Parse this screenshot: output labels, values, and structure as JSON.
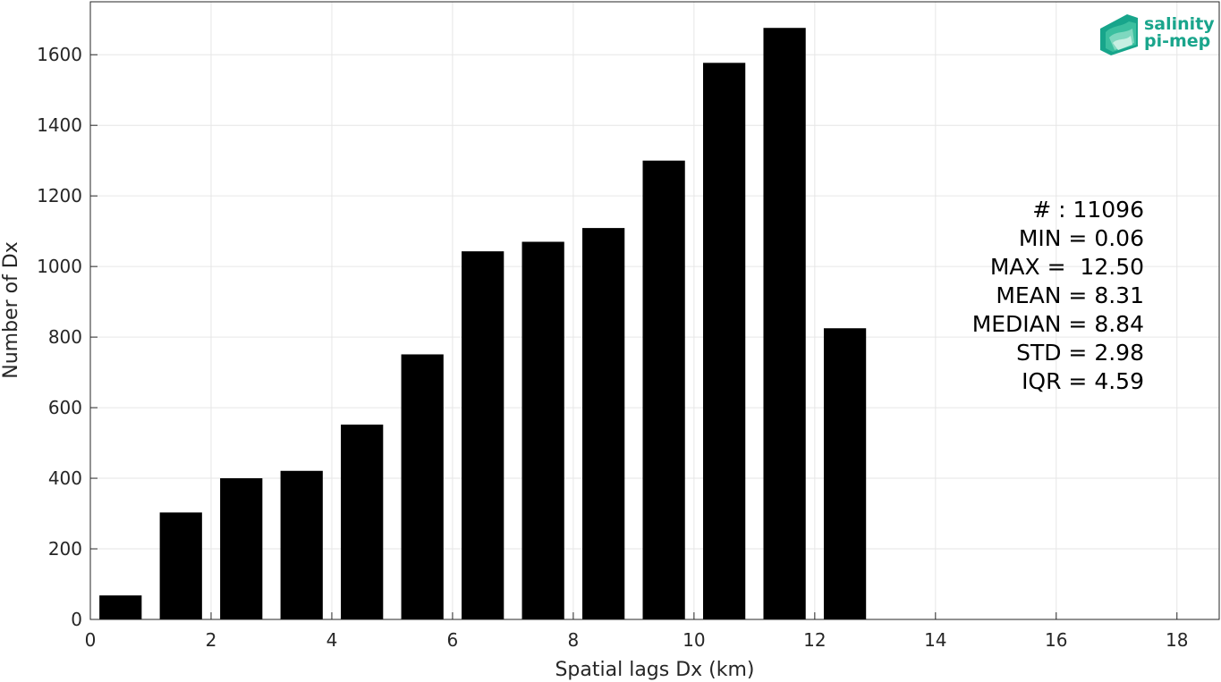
{
  "chart_data": {
    "type": "bar",
    "title": "",
    "xlabel": "Spatial lags Dx (km)",
    "ylabel": "Number of Dx",
    "x": [
      0.5,
      1.5,
      2.5,
      3.5,
      4.5,
      5.5,
      6.5,
      7.5,
      8.5,
      9.5,
      10.5,
      11.5,
      12.5
    ],
    "bar_width": 0.7,
    "values": [
      68,
      303,
      400,
      421,
      552,
      751,
      1043,
      1070,
      1109,
      1300,
      1577,
      1676,
      825
    ],
    "xlim": [
      0,
      18.7
    ],
    "ylim": [
      0,
      1750
    ],
    "xticks": [
      0,
      2,
      4,
      6,
      8,
      10,
      12,
      14,
      16,
      18
    ],
    "yticks": [
      0,
      200,
      400,
      600,
      800,
      1000,
      1200,
      1400,
      1600
    ],
    "grid": true,
    "bar_color": "#000000",
    "grid_color": "#e6e6e6",
    "annotation_lines": [
      "# : 11096",
      "MIN = 0.06",
      "MAX =  12.50",
      "MEAN = 8.31",
      "MEDIAN = 8.84",
      "STD = 2.98",
      "IQR = 4.59"
    ]
  },
  "logo": {
    "line1": "salinity",
    "line2": "pi-mep",
    "color": "#1aa58c"
  }
}
